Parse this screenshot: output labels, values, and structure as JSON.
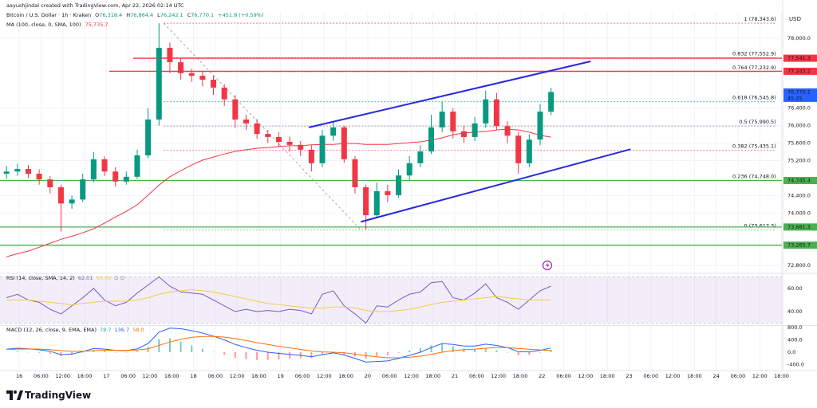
{
  "chart_data": {
    "type": "candlestick",
    "subtitle": "aayushjindal created with TradingView.com, Apr 22, 2026 02:14 UTC",
    "title": "Bitcoin / U.S. Dollar · 1h · Kraken",
    "ohlc_header": [
      {
        "key": "O",
        "value": "76,318.4"
      },
      {
        "key": "H",
        "value": "76,864.4"
      },
      {
        "key": "L",
        "value": "76,242.1"
      },
      {
        "key": "C",
        "value": "76,770.1"
      }
    ],
    "change": "+451.8 (+0.59%)",
    "currency": "USD",
    "footer": "TradingView",
    "grid": true,
    "up_color": "#089981",
    "down_color": "#f23645",
    "xlim": [
      -5.3,
      210.1
    ],
    "xticks": [
      {
        "value": 0,
        "label": "16"
      },
      {
        "value": 6,
        "label": "06:00"
      },
      {
        "value": 12,
        "label": "12:00"
      },
      {
        "value": 18,
        "label": "18:00"
      },
      {
        "value": 24,
        "label": "17"
      },
      {
        "value": 30,
        "label": "06:00"
      },
      {
        "value": 36,
        "label": "12:00"
      },
      {
        "value": 42,
        "label": "18:00"
      },
      {
        "value": 48,
        "label": "18"
      },
      {
        "value": 54,
        "label": "06:00"
      },
      {
        "value": 60,
        "label": "12:00"
      },
      {
        "value": 66,
        "label": "18:00"
      },
      {
        "value": 72,
        "label": "19"
      },
      {
        "value": 78,
        "label": "06:00"
      },
      {
        "value": 84,
        "label": "12:00"
      },
      {
        "value": 90,
        "label": "18:00"
      },
      {
        "value": 96,
        "label": "20"
      },
      {
        "value": 102,
        "label": "06:00"
      },
      {
        "value": 108,
        "label": "12:00"
      },
      {
        "value": 114,
        "label": "18:00"
      },
      {
        "value": 120,
        "label": "21"
      },
      {
        "value": 126,
        "label": "06:00"
      },
      {
        "value": 132,
        "label": "12:00"
      },
      {
        "value": 138,
        "label": "18:00"
      },
      {
        "value": 144,
        "label": "22"
      },
      {
        "value": 150,
        "label": "06:00"
      },
      {
        "value": 156,
        "label": "12:00"
      },
      {
        "value": 162,
        "label": "18:00"
      },
      {
        "value": 168,
        "label": "23"
      },
      {
        "value": 174,
        "label": "06:00"
      },
      {
        "value": 180,
        "label": "12:00"
      },
      {
        "value": 186,
        "label": "18:00"
      },
      {
        "value": 192,
        "label": "24"
      },
      {
        "value": 198,
        "label": "06:00"
      },
      {
        "value": 204,
        "label": "12:00"
      },
      {
        "value": 210,
        "label": "18:00"
      }
    ],
    "ylim": [
      72640,
      78600
    ],
    "yticks": [
      {
        "value": 78000,
        "label": "78,000.0"
      },
      {
        "value": 76400,
        "label": "76,400.0"
      },
      {
        "value": 76000,
        "label": "76,000.0"
      },
      {
        "value": 75600,
        "label": "75,600.0"
      },
      {
        "value": 75200,
        "label": "75,200.0"
      },
      {
        "value": 74400,
        "label": "74,400.0"
      },
      {
        "value": 74000,
        "label": "74,000.0"
      },
      {
        "value": 72800,
        "label": "72,800.0"
      }
    ],
    "candles": {
      "x": [
        -3.5,
        -0.5,
        2.5,
        5.5,
        8.5,
        11.5,
        14.5,
        17.5,
        20.5,
        23.5,
        26.5,
        29.5,
        32.5,
        35.5,
        38.5,
        41.5,
        44.5,
        47.5,
        50.5,
        53.5,
        56.5,
        59.5,
        62.5,
        65.5,
        68.5,
        71.5,
        74.5,
        77.5,
        80.5,
        83.5,
        86.5,
        89.5,
        92.5,
        95.5,
        98.5,
        101.5,
        104.5,
        107.5,
        110.5,
        113.5,
        116.5,
        119.5,
        122.5,
        125.5,
        128.5,
        131.5,
        134.5,
        137.5,
        140.5,
        143.5,
        146.5
      ],
      "open": [
        74900,
        74950,
        75010,
        74900,
        74770,
        74590,
        74220,
        74310,
        74770,
        75230,
        74950,
        74720,
        74830,
        75320,
        76140,
        77780,
        77450,
        77200,
        77140,
        77050,
        76870,
        76600,
        76140,
        76050,
        75810,
        75740,
        75630,
        75560,
        75450,
        75140,
        75770,
        75960,
        75230,
        74590,
        73950,
        74500,
        74410,
        74860,
        75140,
        75410,
        75960,
        76320,
        75870,
        75740,
        76050,
        76600,
        75990,
        75770,
        75140,
        75680,
        76318.4
      ],
      "high": [
        75080,
        75130,
        75100,
        75000,
        74850,
        74650,
        74400,
        74900,
        75400,
        75300,
        75050,
        74950,
        75450,
        76400,
        78340,
        77900,
        77550,
        77300,
        77250,
        77150,
        76950,
        76700,
        76250,
        76150,
        75900,
        75850,
        75750,
        75650,
        75550,
        75900,
        76100,
        76000,
        75300,
        74650,
        74700,
        74650,
        75000,
        75300,
        75550,
        76250,
        76550,
        76400,
        76000,
        76200,
        76800,
        76750,
        76100,
        75850,
        75800,
        76500,
        76864.4
      ],
      "low": [
        74780,
        74850,
        74800,
        74650,
        74450,
        73580,
        74100,
        74250,
        74700,
        74850,
        74600,
        74650,
        74780,
        75250,
        76000,
        77200,
        77050,
        77000,
        76900,
        76700,
        76450,
        75950,
        75900,
        75700,
        75600,
        75500,
        75400,
        75300,
        74950,
        75050,
        75650,
        75150,
        74450,
        73617,
        73900,
        74250,
        74350,
        74750,
        75050,
        75350,
        75850,
        75700,
        75600,
        75650,
        75950,
        75900,
        75600,
        74900,
        75050,
        75550,
        76242.1
      ],
      "close": [
        74950,
        75010,
        74900,
        74770,
        74590,
        74220,
        74310,
        74770,
        75230,
        74950,
        74720,
        74830,
        75320,
        76140,
        77780,
        77450,
        77200,
        77140,
        77050,
        76870,
        76600,
        76140,
        76050,
        75810,
        75740,
        75630,
        75560,
        75450,
        75140,
        75770,
        75960,
        75230,
        74590,
        73950,
        74500,
        74410,
        74860,
        75140,
        75410,
        75960,
        76320,
        75870,
        75740,
        76050,
        76600,
        75990,
        75770,
        75140,
        75680,
        76320,
        76770.1
      ],
      "last_label": "76,770.1",
      "countdown": "45:25"
    },
    "ma": {
      "name": "MA (100, close, 0, SMA, 100)",
      "color": "#f23645",
      "last_label": "75,735.7",
      "values": [
        73000,
        73070,
        73130,
        73220,
        73310,
        73400,
        73470,
        73550,
        73640,
        73770,
        73910,
        74040,
        74190,
        74410,
        74640,
        74830,
        74970,
        75100,
        75210,
        75280,
        75350,
        75410,
        75450,
        75480,
        75500,
        75520,
        75540,
        75540,
        75560,
        75570,
        75570,
        75590,
        75590,
        75570,
        75570,
        75570,
        75590,
        75610,
        75630,
        75670,
        75720,
        75790,
        75830,
        75850,
        75870,
        75900,
        75920,
        75900,
        75850,
        75780,
        75735.7
      ]
    },
    "levels": [
      {
        "value": 77541.3,
        "label": "77,541.3",
        "color": "#f23645",
        "x0": 31.4
      },
      {
        "value": 77243.2,
        "label": "77,243.2",
        "color": "#f23645",
        "x0": 24.8
      },
      {
        "value": 74745.4,
        "label": "74,745.4",
        "color": "#4caf50",
        "x0": -5.3
      },
      {
        "value": 73681.3,
        "label": "73,681.3",
        "color": "#4caf50",
        "x0": -5.3
      },
      {
        "value": 73265.7,
        "label": "73,265.7",
        "color": "#4caf50",
        "x0": -5.3
      }
    ],
    "fibonacci": {
      "x0": 39.8,
      "x1": 208.5,
      "diagonal": {
        "x": [
          39.8,
          94.1
        ],
        "y": [
          78343.6,
          73617.3
        ]
      },
      "levels": [
        {
          "label": "1 (78,343.6)",
          "value": 78343.6,
          "color": "#f23645"
        },
        {
          "label": "0.832 (77,552.9)",
          "value": 77552.9,
          "color": "#f23645"
        },
        {
          "label": "0.764 (77,232.9)",
          "value": 77232.9,
          "color": "#f23645"
        },
        {
          "label": "0.618 (76,545.8)",
          "value": 76545.8,
          "color": "#089981"
        },
        {
          "label": "0.5 (75,990.5)",
          "value": 75990.5,
          "color": "#787b86"
        },
        {
          "label": "0.382 (75,435.1)",
          "value": 75435.1,
          "color": "#f23645"
        },
        {
          "label": "0.236 (74,748.0)",
          "value": 74748.0,
          "color": "#4caf50"
        },
        {
          "label": "0 (73,617.3)",
          "value": 73617.3,
          "color": "#4caf50"
        }
      ]
    },
    "trendlines": [
      {
        "x": [
          79.8,
          157.4
        ],
        "y": [
          75960,
          77470
        ],
        "color": "#2727e0"
      },
      {
        "x": [
          94.1,
          168.4
        ],
        "y": [
          73800,
          75460
        ],
        "color": "#2727e0"
      }
    ],
    "rsi": {
      "title": "RSI (14, close, SMA, 14, 2)",
      "extra": "∅ ∅",
      "ylim": [
        28.3,
        72.4
      ],
      "band": [
        70,
        30
      ],
      "yticks": [
        {
          "value": 60,
          "label": "60.00"
        },
        {
          "value": 40,
          "label": "40.00"
        }
      ],
      "series": [
        {
          "color": "#7e57c2",
          "last_label": "62.01",
          "values": [
            52,
            55,
            50,
            48,
            42,
            38,
            45,
            52,
            60,
            50,
            45,
            48,
            56,
            63,
            70,
            62,
            57,
            56,
            55,
            50,
            45,
            40,
            42,
            40,
            41,
            40,
            42,
            41,
            38,
            55,
            58,
            45,
            38,
            30,
            45,
            44,
            50,
            55,
            57,
            65,
            66,
            52,
            50,
            56,
            64,
            52,
            48,
            42,
            50,
            58,
            62.01
          ]
        },
        {
          "color": "#f7c948",
          "last_label": "50.09",
          "values": [
            50,
            50,
            50,
            49,
            48,
            47,
            46,
            47,
            48,
            49,
            49,
            49,
            50,
            52,
            55,
            57,
            58,
            59,
            58,
            57,
            55,
            53,
            51,
            49,
            47,
            46,
            45,
            44,
            43,
            43,
            44,
            44,
            43,
            41,
            40,
            40,
            41,
            42,
            44,
            46,
            48,
            49,
            50,
            51,
            52,
            53,
            52,
            51,
            50,
            50,
            50.09
          ]
        }
      ]
    },
    "macd": {
      "title": "MACD (12, 26, close, 9, EMA, EMA)",
      "ylim": [
        -568,
        851
      ],
      "yticks": [
        {
          "value": 800,
          "label": "800.0"
        },
        {
          "value": 400,
          "label": "400.0"
        },
        {
          "value": 0,
          "label": "0.0"
        },
        {
          "value": -400,
          "label": "-400.0"
        }
      ],
      "histogram": {
        "up_color": "#26a69a",
        "down_color": "#ff5252",
        "last_label": "78.7",
        "values": [
          10,
          30,
          5,
          -20,
          -55,
          -130,
          -90,
          -10,
          70,
          40,
          0,
          -10,
          40,
          170,
          430,
          450,
          340,
          220,
          110,
          10,
          -90,
          -190,
          -230,
          -250,
          -250,
          -230,
          -210,
          -190,
          -190,
          -90,
          -20,
          -70,
          -140,
          -210,
          -150,
          -100,
          -20,
          60,
          130,
          220,
          280,
          200,
          120,
          100,
          130,
          70,
          0,
          -100,
          -85,
          -15,
          78.7
        ]
      },
      "macd": {
        "color": "#2962ff",
        "last_label": "136.7",
        "values": [
          100,
          130,
          110,
          80,
          30,
          -80,
          -60,
          20,
          120,
          100,
          60,
          50,
          110,
          280,
          650,
          780,
          760,
          700,
          620,
          520,
          400,
          250,
          150,
          60,
          0,
          -40,
          -70,
          -100,
          -150,
          -80,
          -20,
          -90,
          -200,
          -320,
          -300,
          -280,
          -200,
          -100,
          0,
          150,
          280,
          250,
          200,
          200,
          260,
          220,
          150,
          20,
          10,
          60,
          136.7
        ]
      },
      "signal": {
        "color": "#ff6d00",
        "last_label": "58.0",
        "values": [
          90,
          100,
          105,
          100,
          85,
          50,
          30,
          30,
          50,
          60,
          60,
          60,
          70,
          110,
          220,
          330,
          420,
          480,
          510,
          510,
          490,
          440,
          380,
          310,
          250,
          190,
          140,
          90,
          40,
          10,
          0,
          -20,
          -60,
          -110,
          -150,
          -180,
          -180,
          -160,
          -130,
          -70,
          0,
          50,
          80,
          100,
          130,
          150,
          150,
          120,
          95,
          75,
          58.0
        ]
      }
    }
  }
}
